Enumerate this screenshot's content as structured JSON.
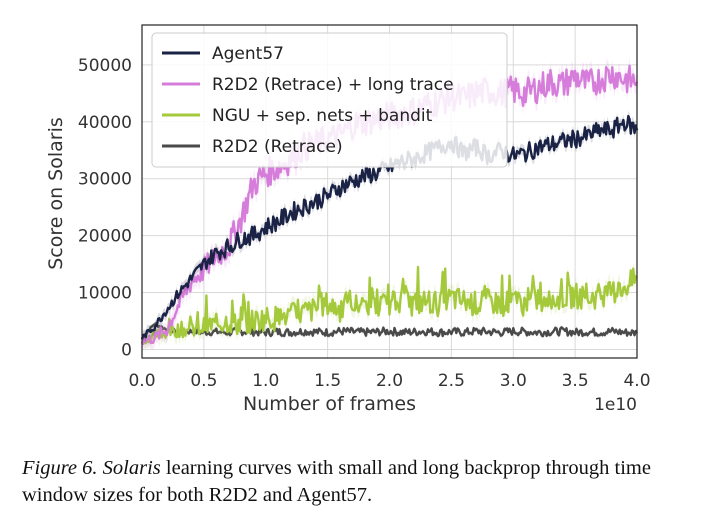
{
  "chart_data": {
    "type": "line",
    "title": "",
    "xlabel": "Number of  frames",
    "ylabel": "Score on Solaris",
    "x_scale_note": "1e10",
    "xlim": [
      0.0,
      4.0
    ],
    "ylim": [
      -1500,
      57000
    ],
    "xticks": [
      0.0,
      0.5,
      1.0,
      1.5,
      2.0,
      2.5,
      3.0,
      3.5,
      4.0
    ],
    "xtick_labels": [
      "0.0",
      "0.5",
      "1.0",
      "1.5",
      "2.0",
      "2.5",
      "3.0",
      "3.5",
      "4.0"
    ],
    "yticks": [
      0,
      10000,
      20000,
      30000,
      40000,
      50000
    ],
    "ytick_labels": [
      "0",
      "10000",
      "20000",
      "30000",
      "40000",
      "50000"
    ],
    "grid": true,
    "legend_position": "top-left",
    "series": [
      {
        "name": "Agent57",
        "color": "#1a2346",
        "x": [
          0.0,
          0.1,
          0.2,
          0.3,
          0.4,
          0.5,
          0.6,
          0.7,
          0.8,
          0.9,
          1.0,
          1.1,
          1.2,
          1.3,
          1.4,
          1.5,
          1.6,
          1.7,
          1.8,
          1.9,
          2.0,
          2.1,
          2.2,
          2.3,
          2.4,
          2.5,
          2.6,
          2.7,
          2.8,
          2.9,
          3.0,
          3.1,
          3.2,
          3.3,
          3.4,
          3.5,
          3.6,
          3.7,
          3.8,
          3.9,
          4.0
        ],
        "values": [
          2000,
          4000,
          7000,
          10000,
          12500,
          15000,
          17000,
          18000,
          19500,
          20000,
          21500,
          22500,
          24000,
          25000,
          26000,
          27000,
          28500,
          29500,
          30500,
          31000,
          32000,
          33000,
          33500,
          34500,
          35500,
          36500,
          34500,
          35500,
          34000,
          35000,
          34000,
          34500,
          35500,
          36000,
          36500,
          37000,
          37500,
          38500,
          38500,
          40000,
          38500
        ]
      },
      {
        "name": "R2D2 (Retrace) + long trace",
        "color": "#d67ddb",
        "x": [
          0.0,
          0.1,
          0.2,
          0.3,
          0.4,
          0.5,
          0.6,
          0.7,
          0.8,
          0.9,
          1.0,
          1.1,
          1.2,
          1.3,
          1.4,
          1.5,
          1.6,
          1.7,
          1.8,
          1.9,
          2.0,
          2.1,
          2.2,
          2.3,
          2.4,
          2.5,
          2.6,
          2.7,
          2.8,
          2.9,
          3.0,
          3.1,
          3.2,
          3.3,
          3.4,
          3.5,
          3.6,
          3.7,
          3.8,
          3.9,
          4.0
        ],
        "values": [
          1500,
          2000,
          3500,
          8000,
          12000,
          14000,
          16500,
          18000,
          23000,
          29000,
          31000,
          32000,
          33500,
          35500,
          36000,
          37000,
          37500,
          39500,
          40000,
          40500,
          41000,
          41500,
          42000,
          43000,
          43500,
          44500,
          44000,
          45000,
          45500,
          45000,
          45500,
          45000,
          46000,
          47000,
          46500,
          48000,
          46500,
          47500,
          48500,
          47500,
          47000
        ]
      },
      {
        "name": "NGU + sep. nets + bandit",
        "color": "#a4c93b",
        "x": [
          0.0,
          0.1,
          0.2,
          0.3,
          0.4,
          0.5,
          0.6,
          0.7,
          0.8,
          0.9,
          1.0,
          1.1,
          1.2,
          1.3,
          1.4,
          1.5,
          1.6,
          1.7,
          1.8,
          1.9,
          2.0,
          2.1,
          2.2,
          2.3,
          2.4,
          2.5,
          2.6,
          2.7,
          2.8,
          2.9,
          3.0,
          3.1,
          3.2,
          3.3,
          3.4,
          3.5,
          3.6,
          3.7,
          3.8,
          3.9,
          4.0
        ],
        "values": [
          1500,
          2500,
          3000,
          3500,
          3500,
          4000,
          4500,
          5000,
          4500,
          5000,
          5500,
          5500,
          6000,
          6500,
          7000,
          8000,
          7000,
          7500,
          8000,
          7500,
          8000,
          8500,
          8000,
          8500,
          8000,
          9000,
          8500,
          8000,
          8500,
          8000,
          8500,
          8000,
          9000,
          8500,
          9000,
          9500,
          9000,
          9500,
          10000,
          11000,
          12500
        ]
      },
      {
        "name": "R2D2 (Retrace)",
        "color": "#4a4a4a",
        "x": [
          0.0,
          0.1,
          0.2,
          0.3,
          0.4,
          0.5,
          0.6,
          0.7,
          0.8,
          0.9,
          1.0,
          1.1,
          1.2,
          1.3,
          1.4,
          1.5,
          1.6,
          1.7,
          1.8,
          1.9,
          2.0,
          2.1,
          2.2,
          2.3,
          2.4,
          2.5,
          2.6,
          2.7,
          2.8,
          2.9,
          3.0,
          3.1,
          3.2,
          3.3,
          3.4,
          3.5,
          3.6,
          3.7,
          3.8,
          3.9,
          4.0
        ],
        "values": [
          2000,
          4500,
          3500,
          3000,
          3200,
          3000,
          3100,
          3000,
          3200,
          3100,
          3000,
          3100,
          3000,
          3200,
          3100,
          3000,
          3200,
          3100,
          3000,
          3100,
          3200,
          3000,
          3100,
          3200,
          3000,
          3100,
          3000,
          3200,
          3100,
          3000,
          3200,
          3100,
          3000,
          3100,
          3200,
          3000,
          3100,
          3000,
          3200,
          3000,
          2900
        ]
      }
    ]
  },
  "caption": {
    "figure_label": "Figure 6.",
    "game_name": "Solaris",
    "text": " learning curves with small and long backprop through time window sizes for both R2D2 and Agent57."
  }
}
